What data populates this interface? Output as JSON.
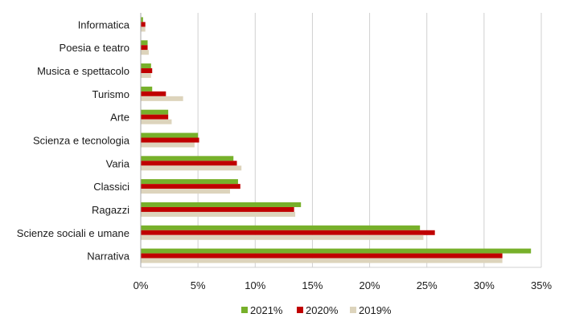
{
  "chart_data": {
    "type": "bar",
    "orientation": "horizontal",
    "categories": [
      "Informatica",
      "Poesia e teatro",
      "Musica e spettacolo",
      "Turismo",
      "Arte",
      "Scienza e tecnologia",
      "Varia",
      "Classici",
      "Ragazzi",
      "Scienze sociali e umane",
      "Narrativa"
    ],
    "series": [
      {
        "name": "2021%",
        "color": "#77b02a",
        "values": [
          0.2,
          0.6,
          0.9,
          1.0,
          2.4,
          5.0,
          8.1,
          8.5,
          14.0,
          24.4,
          34.1
        ]
      },
      {
        "name": "2020%",
        "color": "#c00000",
        "values": [
          0.4,
          0.6,
          1.0,
          2.2,
          2.4,
          5.1,
          8.4,
          8.7,
          13.4,
          25.7,
          31.6
        ]
      },
      {
        "name": "2019%",
        "color": "#ddd4bc",
        "values": [
          0.4,
          0.7,
          0.9,
          3.7,
          2.7,
          4.7,
          8.8,
          7.8,
          13.5,
          24.7,
          31.6
        ]
      }
    ],
    "xlim": [
      0,
      35
    ],
    "xticks": [
      "0%",
      "5%",
      "10%",
      "15%",
      "20%",
      "25%",
      "30%",
      "35%"
    ],
    "xtick_values": [
      0,
      5,
      10,
      15,
      20,
      25,
      30,
      35
    ],
    "grid": "vertical",
    "legend": "bottom",
    "title": "",
    "xlabel": "",
    "ylabel": ""
  }
}
